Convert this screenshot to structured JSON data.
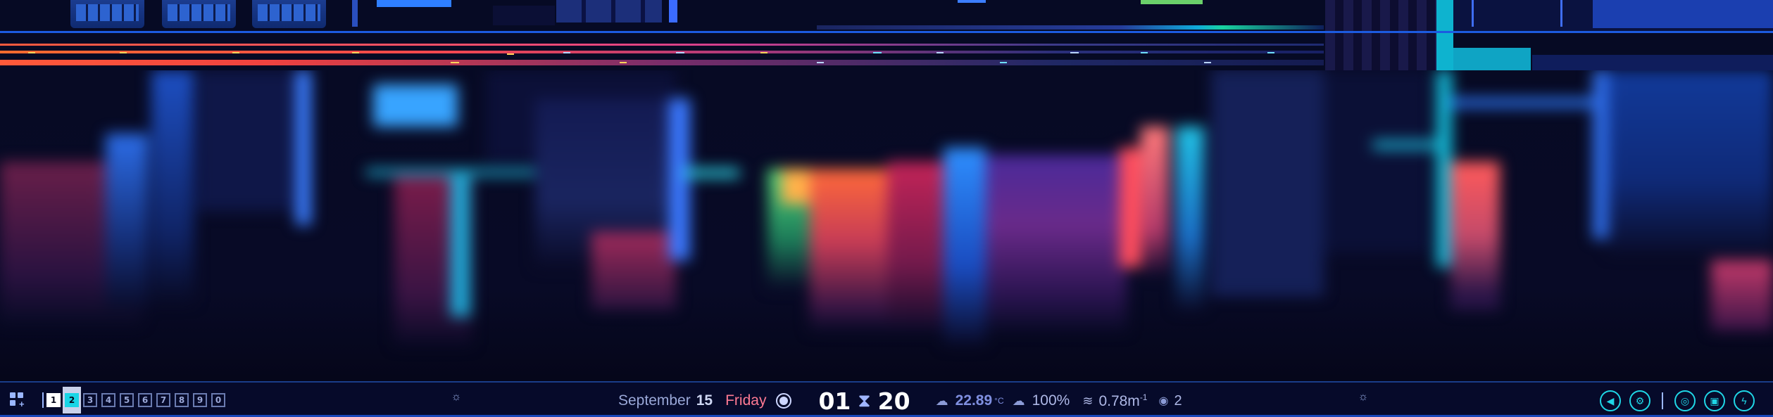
{
  "taskbar": {
    "workspaces": [
      {
        "label": "1",
        "state": "active"
      },
      {
        "label": "2",
        "state": "current"
      },
      {
        "label": "3",
        "state": "empty"
      },
      {
        "label": "4",
        "state": "empty"
      },
      {
        "label": "5",
        "state": "empty"
      },
      {
        "label": "6",
        "state": "empty"
      },
      {
        "label": "7",
        "state": "empty"
      },
      {
        "label": "8",
        "state": "empty"
      },
      {
        "label": "9",
        "state": "empty"
      },
      {
        "label": "0",
        "state": "empty"
      }
    ],
    "date": {
      "month": "September",
      "day": "15",
      "weekday": "Friday"
    },
    "clock": {
      "hours": "01",
      "minutes": "20"
    },
    "weather": {
      "temperature": "22.89",
      "unit": "°C",
      "humidity": "100%",
      "wind": "0.78m",
      "wind_unit_sup": "-1",
      "visibility": "2"
    },
    "icons": {
      "apps": "grid-plus-icon",
      "divider": "brightness-icon",
      "moon": "moon-icon",
      "hourglass": "hourglass-icon",
      "weather": "cloud-icon",
      "cloud": "cloud-sun-icon",
      "wind": "wind-icon",
      "visibility": "eye-icon",
      "tray": [
        "volume-icon",
        "gear-icon",
        "network-icon",
        "package-icon",
        "power-icon"
      ]
    },
    "colors": {
      "accent": "#19d6e6",
      "weekday": "#ff7a93",
      "bar": "#060a2a"
    }
  }
}
